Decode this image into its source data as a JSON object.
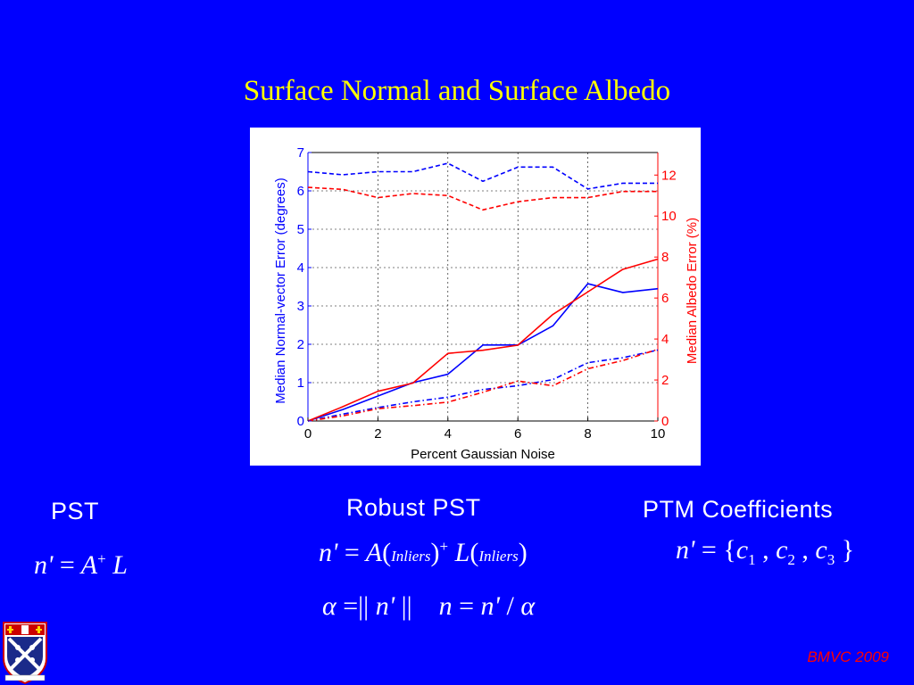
{
  "slide": {
    "title": "Surface Normal and Surface Albedo",
    "footer": "BMVC 2009",
    "colors": {
      "background": "#0000ff",
      "title": "#ffff00",
      "text": "#ffffff",
      "footer": "#ff0000"
    }
  },
  "methods": {
    "pst_label": "PST",
    "robust_label": "Robust PST",
    "ptm_label": "PTM Coefficients"
  },
  "equations": {
    "pst": "n' = A⁺ L",
    "robust": "n' = A(Inliers)⁺ L(Inliers)",
    "robust_norm": "α = ||n'||   n = n' / α",
    "ptm": "n' = {c₁ , c₂ , c₃}",
    "subscript_inliers": "Inliers"
  },
  "chart_data": {
    "type": "line",
    "xlabel": "Percent Gaussian Noise",
    "ylabel": "Median Normal-vector Error (degrees)",
    "y2label": "Median Albedo Error (%)",
    "x": [
      0,
      1,
      2,
      3,
      4,
      5,
      6,
      7,
      8,
      9,
      10
    ],
    "xlim": [
      0,
      10
    ],
    "ylim": [
      0,
      7
    ],
    "y2lim": [
      0,
      13.1
    ],
    "xticks": [
      0,
      2,
      4,
      6,
      8,
      10
    ],
    "yticks": [
      0,
      1,
      2,
      3,
      4,
      5,
      6,
      7
    ],
    "y2ticks": [
      0,
      2,
      4,
      6,
      8,
      10,
      12
    ],
    "grid": true,
    "series": [
      {
        "axis": "left",
        "color": "#0000ff",
        "style": "dashed",
        "values": [
          6.5,
          6.42,
          6.5,
          6.5,
          6.72,
          6.25,
          6.62,
          6.62,
          6.05,
          6.2,
          6.2
        ]
      },
      {
        "axis": "left",
        "color": "#0000ff",
        "style": "solid",
        "values": [
          0,
          0.3,
          0.65,
          1.0,
          1.22,
          1.98,
          1.98,
          2.48,
          3.58,
          3.35,
          3.45
        ]
      },
      {
        "axis": "left",
        "color": "#0000ff",
        "style": "dashdot",
        "values": [
          0,
          0.18,
          0.35,
          0.5,
          0.62,
          0.82,
          0.92,
          1.08,
          1.52,
          1.65,
          1.85
        ]
      },
      {
        "axis": "right",
        "color": "#ff0000",
        "style": "dashed",
        "values": [
          11.4,
          11.3,
          10.9,
          11.1,
          11.0,
          10.3,
          10.7,
          10.9,
          10.9,
          11.2,
          11.2
        ]
      },
      {
        "axis": "right",
        "color": "#ff0000",
        "style": "solid",
        "values": [
          0,
          0.7,
          1.45,
          1.85,
          3.3,
          3.45,
          3.7,
          5.2,
          6.3,
          7.4,
          7.9
        ]
      },
      {
        "axis": "right",
        "color": "#ff0000",
        "style": "dashdot",
        "values": [
          0,
          0.25,
          0.6,
          0.75,
          0.92,
          1.4,
          1.95,
          1.72,
          2.55,
          2.95,
          3.5
        ]
      }
    ]
  }
}
